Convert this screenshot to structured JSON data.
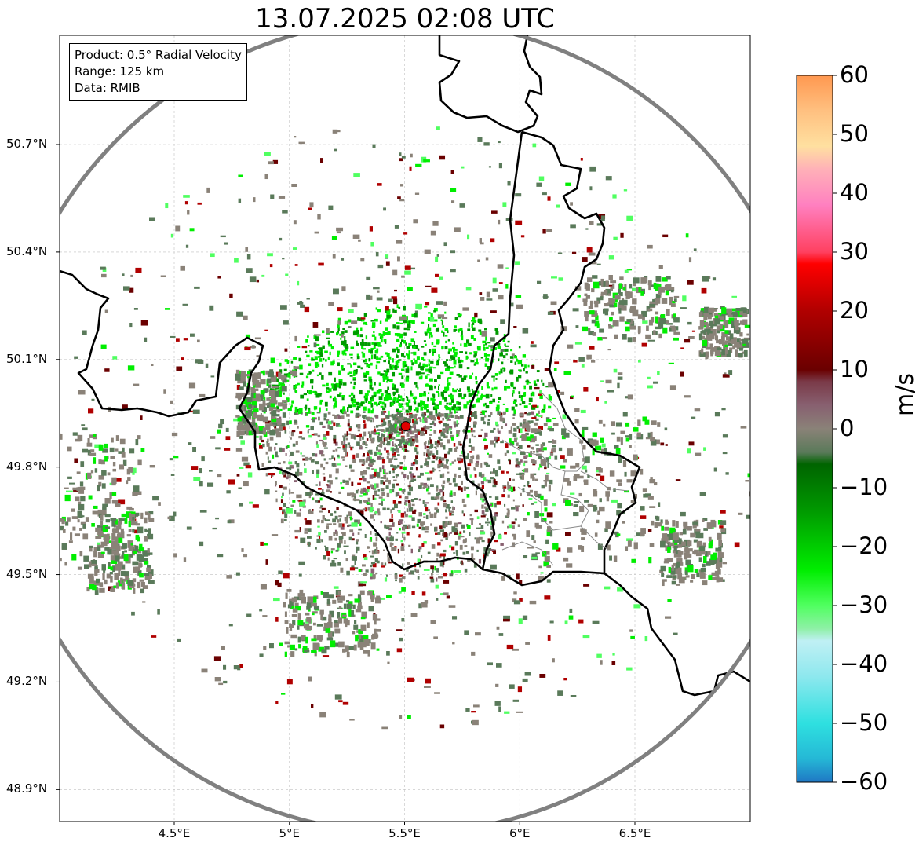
{
  "title": "13.07.2025 02:08 UTC",
  "info": {
    "product": "Product: 0.5° Radial Velocity",
    "range": "Range: 125 km",
    "data": "Data: RMIB"
  },
  "axes": {
    "lon_ticks": [
      "4.5°E",
      "5°E",
      "5.5°E",
      "6°E",
      "6.5°E"
    ],
    "lat_ticks": [
      "50.7°N",
      "50.4°N",
      "50.1°N",
      "49.8°N",
      "49.5°N",
      "49.2°N",
      "48.9°N"
    ],
    "lon_values": [
      4.5,
      5.0,
      5.5,
      6.0,
      6.5
    ],
    "lat_values": [
      50.7,
      50.4,
      50.1,
      49.8,
      49.5,
      49.2,
      48.9
    ],
    "lon_range": [
      4.0,
      7.0
    ],
    "lat_range": [
      48.8,
      51.0
    ],
    "grid": true
  },
  "radar_site": {
    "lon": 5.505,
    "lat": 49.914,
    "color": "#e00000"
  },
  "colorbar": {
    "unit": "m/s",
    "range": [
      -60,
      60
    ],
    "ticks": [
      "60",
      "50",
      "40",
      "30",
      "20",
      "10",
      "0",
      "−10",
      "−20",
      "−30",
      "−40",
      "−50",
      "−60"
    ],
    "tick_values": [
      60,
      50,
      40,
      30,
      20,
      10,
      0,
      -10,
      -20,
      -30,
      -40,
      -50,
      -60
    ],
    "stops": [
      [
        -60,
        "#1f77c4"
      ],
      [
        -56,
        "#25b8d6"
      ],
      [
        -50,
        "#2ee0e0"
      ],
      [
        -42,
        "#8ee8ee"
      ],
      [
        -36,
        "#c0f0f4"
      ],
      [
        -34,
        "#90f0a8"
      ],
      [
        -30,
        "#50ff60"
      ],
      [
        -24,
        "#00ee00"
      ],
      [
        -14,
        "#009a00"
      ],
      [
        -6,
        "#006400"
      ],
      [
        -4,
        "#5a7a5a"
      ],
      [
        0,
        "#8a8278"
      ],
      [
        4,
        "#886070"
      ],
      [
        8,
        "#7a3a48"
      ],
      [
        10,
        "#6a0000"
      ],
      [
        20,
        "#b00000"
      ],
      [
        28,
        "#ff0000"
      ],
      [
        30,
        "#ff4060"
      ],
      [
        38,
        "#ff80c0"
      ],
      [
        44,
        "#ffb0b8"
      ],
      [
        48,
        "#ffe0a0"
      ],
      [
        54,
        "#ffc080"
      ],
      [
        60,
        "#ff9850"
      ]
    ]
  },
  "colors": {
    "border": "#000000",
    "range_ring": "#808080",
    "grid": "#c0c0c0",
    "muted": "#857570"
  }
}
